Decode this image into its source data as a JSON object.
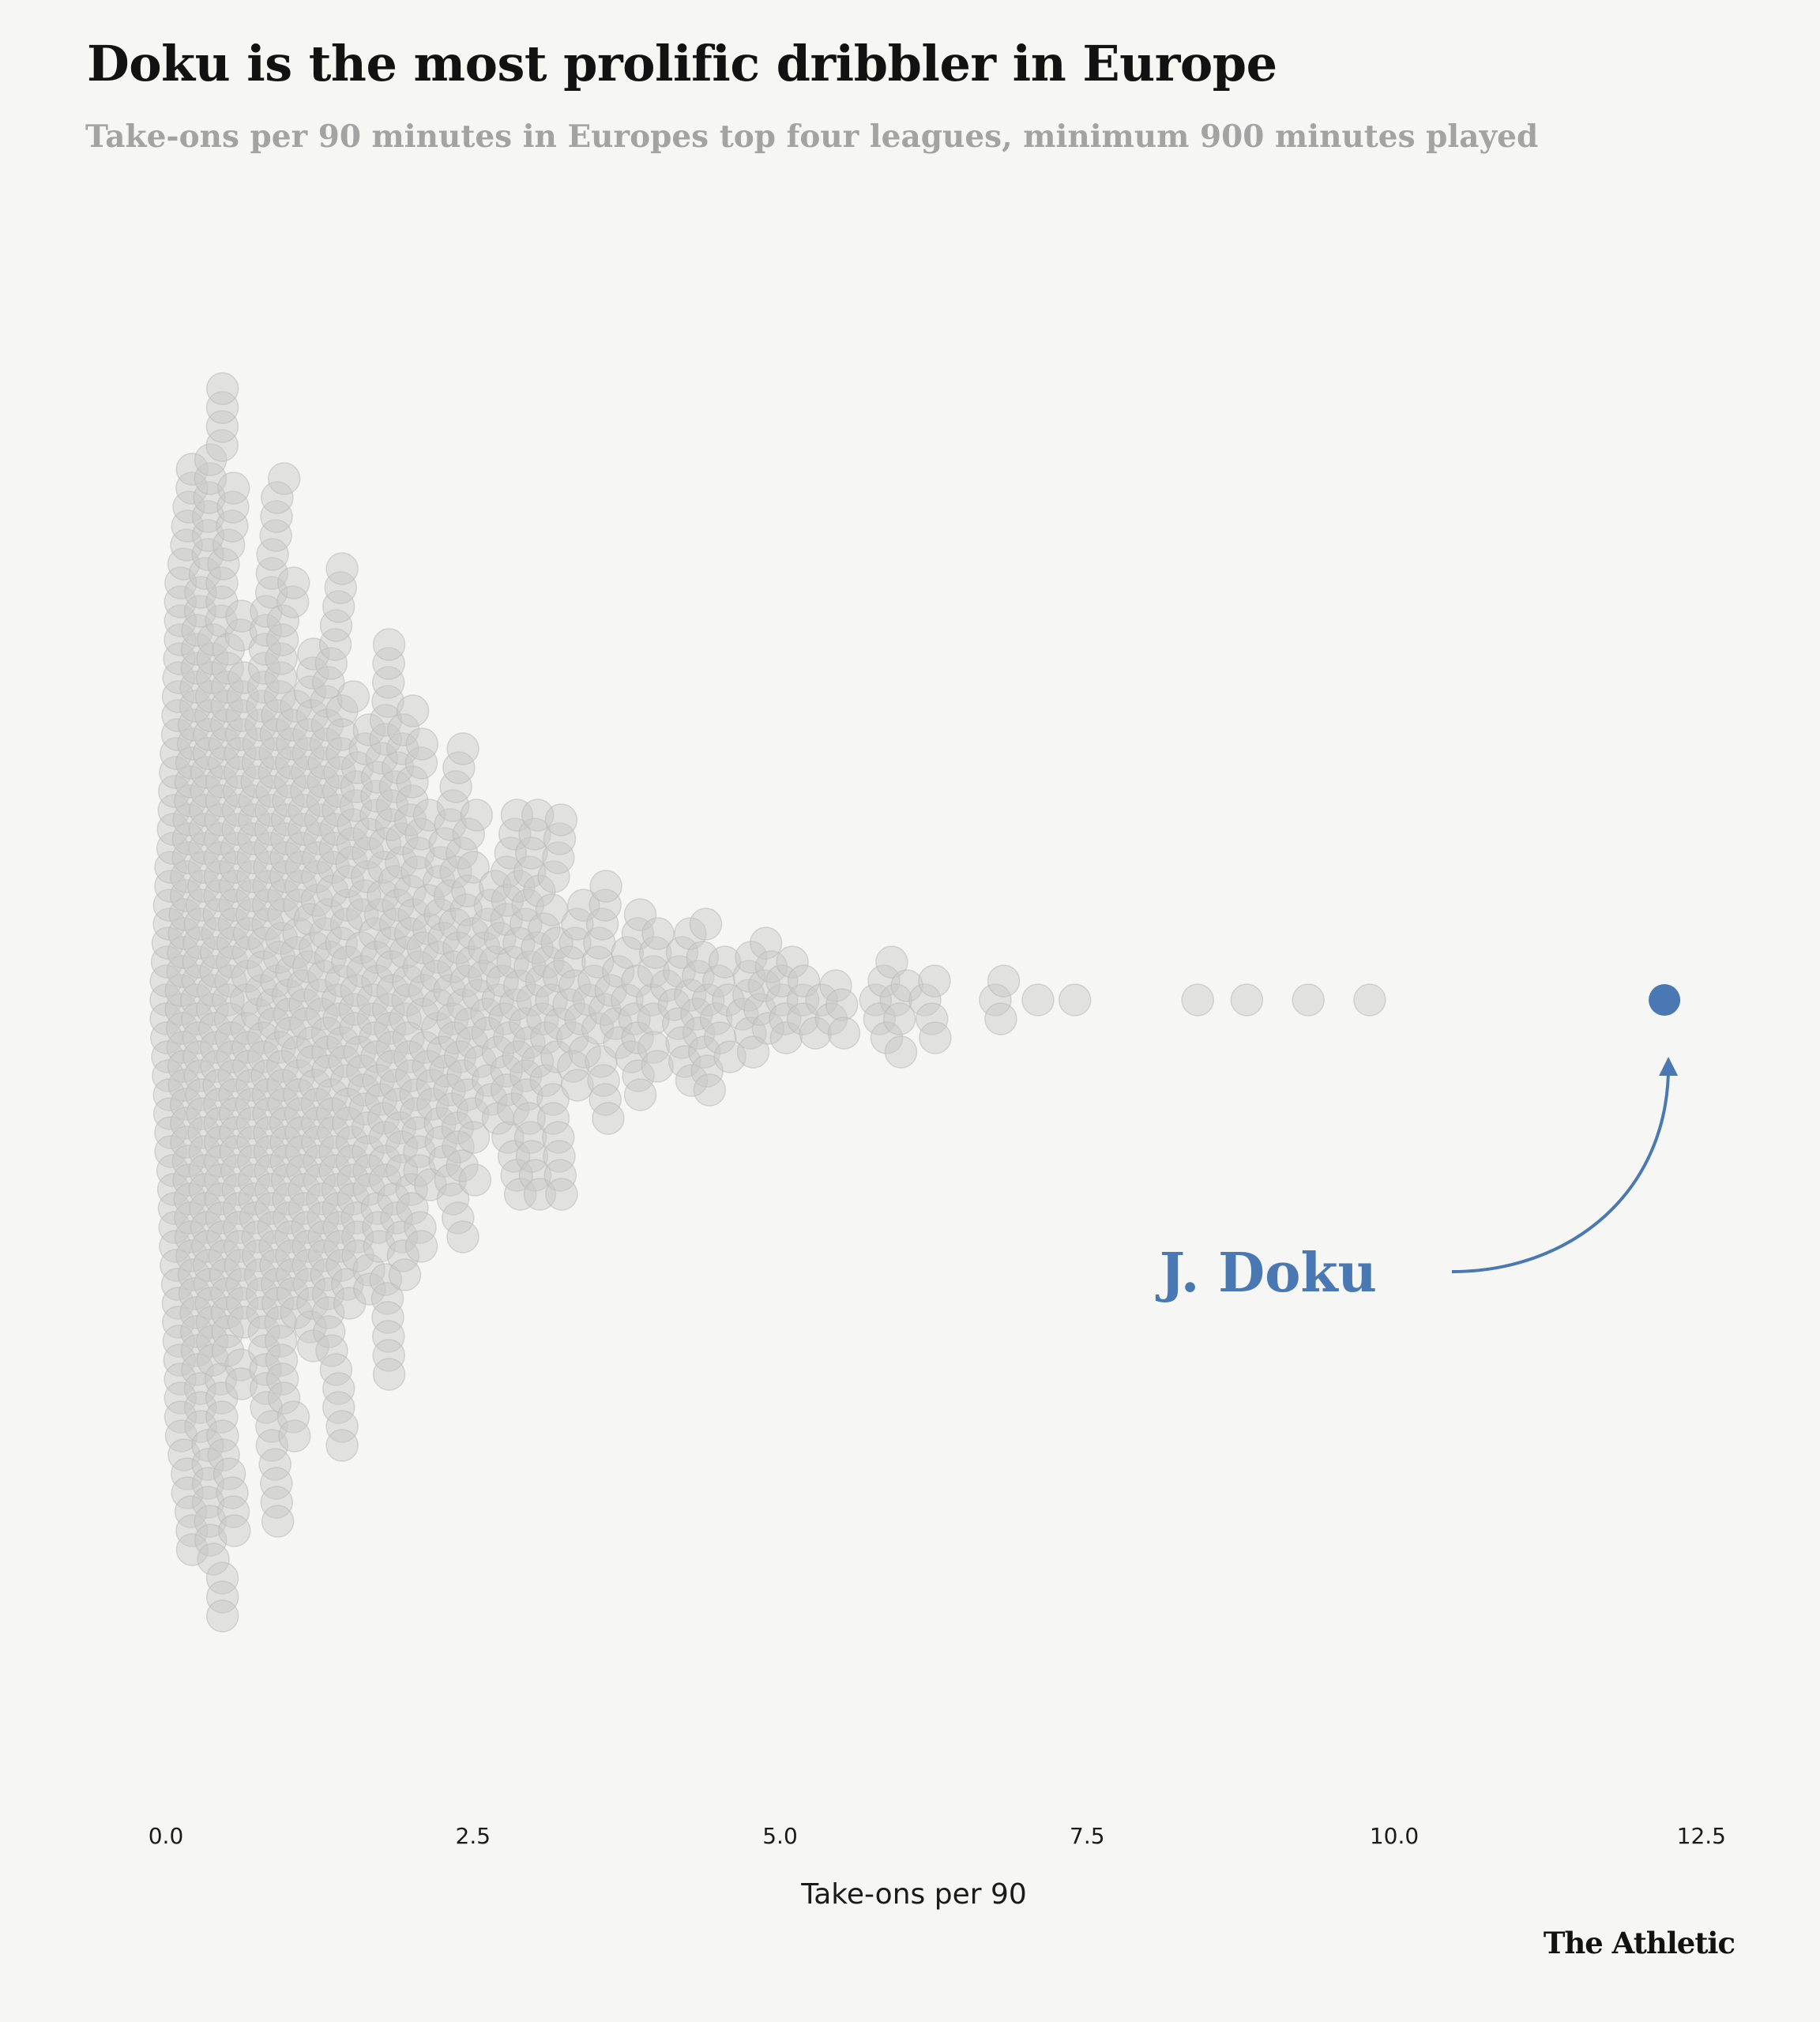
{
  "title": "Doku is the most prolific dribbler in Europe",
  "subtitle": "Take-ons per 90 minutes in Europes top four leagues, minimum 900 minutes played",
  "brand": "The Athletic",
  "colors": {
    "background": "#f6f6f4",
    "dot": "#c8c8c6",
    "highlight": "#4a78b2"
  },
  "chart_data": {
    "type": "scatter",
    "subtype": "beeswarm",
    "xlabel": "Take-ons per 90",
    "xlim": [
      0,
      12.5
    ],
    "x_ticks": [
      "0.0",
      "2.5",
      "5.0",
      "7.5",
      "10.0",
      "12.5"
    ],
    "grid": false,
    "distribution": {
      "count": 900,
      "density_bins": [
        {
          "range": [
            0.0,
            0.5
          ],
          "count": 205
        },
        {
          "range": [
            0.5,
            1.0
          ],
          "count": 170
        },
        {
          "range": [
            1.0,
            1.5
          ],
          "count": 140
        },
        {
          "range": [
            1.5,
            2.0
          ],
          "count": 110
        },
        {
          "range": [
            2.0,
            2.5
          ],
          "count": 80
        },
        {
          "range": [
            2.5,
            3.0
          ],
          "count": 55
        },
        {
          "range": [
            3.0,
            3.5
          ],
          "count": 42
        },
        {
          "range": [
            3.5,
            4.0
          ],
          "count": 30
        },
        {
          "range": [
            4.0,
            4.5
          ],
          "count": 22
        },
        {
          "range": [
            4.5,
            5.0
          ],
          "count": 16
        },
        {
          "range": [
            5.0,
            5.5
          ],
          "count": 12
        },
        {
          "range": [
            5.5,
            6.0
          ],
          "count": 10
        },
        {
          "range": [
            6.0,
            6.5
          ],
          "count": 5
        },
        {
          "range": [
            6.5,
            7.0
          ],
          "count": 3
        }
      ],
      "outliers": [
        7.1,
        7.4,
        8.4,
        8.8,
        9.3,
        9.8
      ]
    },
    "highlight": {
      "name": "J. Doku",
      "value": 12.2
    },
    "annotations": [
      {
        "text": "J. Doku",
        "target": "highlight"
      }
    ]
  }
}
